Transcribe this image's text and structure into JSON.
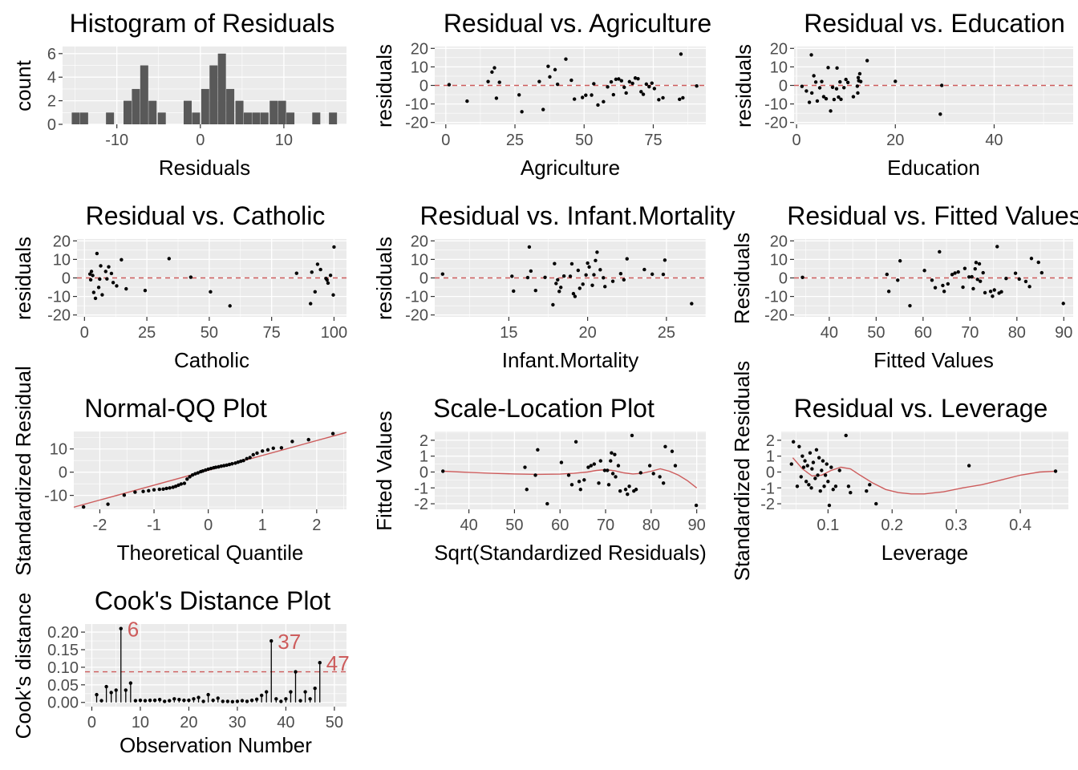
{
  "figure": {
    "background": "#ffffff",
    "panel_background": "#ebebeb",
    "grid_color": "#ffffff",
    "point_color": "#000000",
    "bar_color": "#595959",
    "reference_color": "#cd5c5c"
  },
  "chart_data": [
    {
      "id": "hist",
      "type": "bar",
      "title": "Histogram of Residuals",
      "xlabel": "Residuals",
      "ylabel": "count",
      "xlim": [
        -16.5,
        17.5
      ],
      "ylim": [
        0,
        6.6
      ],
      "xticks": [
        -10,
        0,
        10
      ],
      "xtick_labels": [
        "-10",
        "0",
        "10"
      ],
      "yticks": [
        0,
        2,
        4,
        6
      ],
      "ytick_labels": [
        "0",
        "2",
        "4",
        "6"
      ],
      "grid": true,
      "bin_width": 1,
      "x": [
        -14.9,
        -13.9,
        -10.8,
        -8.7,
        -7.7,
        -6.7,
        -5.7,
        -4.6,
        -1.5,
        -0.5,
        0.6,
        1.6,
        2.6,
        3.6,
        4.7,
        5.7,
        6.7,
        7.7,
        8.8,
        9.8,
        10.8,
        13.9,
        15.9
      ],
      "values": [
        1,
        1,
        1,
        2,
        3,
        5,
        2,
        1,
        2,
        1,
        3,
        5,
        6,
        3,
        2,
        1,
        1,
        1,
        2,
        2,
        1,
        1,
        1
      ]
    },
    {
      "id": "agri",
      "type": "scatter",
      "title": "Residual vs. Agriculture",
      "xlabel": "Agriculture",
      "ylabel": "residuals",
      "xlim": [
        -4,
        94
      ],
      "ylim": [
        -21,
        21
      ],
      "xticks": [
        0,
        25,
        50,
        75
      ],
      "xtick_labels": [
        "0",
        "25",
        "50",
        "75"
      ],
      "yticks": [
        -20,
        -10,
        0,
        10,
        20
      ],
      "ytick_labels": [
        "-20",
        "-10",
        "0",
        "10",
        "20"
      ],
      "reference_y": 0,
      "x": [
        1.2,
        7.7,
        15.3,
        16.7,
        17.6,
        18.3,
        19.4,
        26.5,
        27.5,
        33.8,
        35.2,
        37,
        37.6,
        39.5,
        40.4,
        43.4,
        45.4,
        46.5,
        49.4,
        50.6,
        52.7,
        53.5,
        55,
        57,
        58.5,
        59.8,
        60.6,
        61.5,
        62.5,
        63.5,
        64.5,
        65.2,
        66.4,
        67.5,
        68.5,
        69.5,
        70.6,
        71.4,
        72.5,
        73.5,
        74.5,
        75.4,
        77,
        78.5,
        84.5,
        85,
        85.7,
        90.7
      ],
      "y": [
        0.4,
        -8.5,
        2.1,
        7.2,
        9.5,
        -6.9,
        1.7,
        -5.1,
        -14.2,
        2.1,
        -13,
        10.3,
        4.6,
        8.5,
        0.6,
        14.2,
        2.8,
        -7.4,
        -6.5,
        -5.3,
        -5.2,
        0.9,
        -10.6,
        -8.8,
        -0.8,
        1.9,
        -5,
        3.3,
        3.5,
        2.5,
        -1,
        -4.1,
        2,
        1.1,
        4,
        3.6,
        -3.4,
        -4.8,
        0.7,
        -0.7,
        1.2,
        -1.7,
        -7.7,
        -6.7,
        -7.5,
        16.9,
        -6.7,
        -0.3
      ]
    },
    {
      "id": "edu",
      "type": "scatter",
      "title": "Residual vs. Education",
      "xlabel": "Education",
      "ylabel": "residuals",
      "xlim": [
        -0.5,
        56
      ],
      "ylim": [
        -21,
        21
      ],
      "xticks": [
        0,
        20,
        40
      ],
      "xtick_labels": [
        "0",
        "20",
        "40"
      ],
      "yticks": [
        -20,
        -10,
        0,
        10,
        20
      ],
      "ytick_labels": [
        "-20",
        "-10",
        "0",
        "10",
        "20"
      ],
      "reference_y": 0,
      "x": [
        1.1,
        2,
        2.6,
        3,
        3.1,
        3.5,
        3.9,
        4.2,
        4.7,
        5.1,
        5.5,
        6,
        6.4,
        6.9,
        7.3,
        7.6,
        8.1,
        8.2,
        8.5,
        8.8,
        9,
        9.6,
        10,
        10.4,
        11.5,
        12.3,
        12.4,
        12.5,
        12.6,
        12.8,
        13,
        14.3,
        20,
        29.1,
        29.4
      ],
      "y": [
        -0.5,
        -3,
        -9.1,
        16.5,
        -4.1,
        5.2,
        1.8,
        -8.4,
        -1.3,
        2.1,
        -6.1,
        -7.2,
        9.6,
        -13.8,
        -1,
        -7.6,
        -1.8,
        9.4,
        -6.3,
        1.9,
        -7.5,
        -1.2,
        3.2,
        1.6,
        -6.1,
        -0.4,
        -4.1,
        4.2,
        2.5,
        6.3,
        2.1,
        13.4,
        2.2,
        -15.5,
        0
      ]
    },
    {
      "id": "cath",
      "type": "scatter",
      "title": "Residual vs. Catholic",
      "xlabel": "Catholic",
      "ylabel": "residuals",
      "xlim": [
        -3,
        105
      ],
      "ylim": [
        -21,
        21
      ],
      "xticks": [
        0,
        25,
        50,
        75,
        100
      ],
      "xtick_labels": [
        "0",
        "25",
        "50",
        "75",
        "100"
      ],
      "yticks": [
        -20,
        -10,
        0,
        10,
        20
      ],
      "ytick_labels": [
        "-20",
        "-10",
        "0",
        "10",
        "20"
      ],
      "reference_y": 0,
      "x": [
        2.2,
        2.5,
        2.8,
        3.3,
        3.7,
        4.4,
        5,
        5.7,
        6.1,
        6.5,
        7.1,
        8.5,
        9,
        9.7,
        10.8,
        11.5,
        12.9,
        14.8,
        16.7,
        24.3,
        33.9,
        42.6,
        50.5,
        58.3,
        85,
        90.6,
        91.1,
        92.4,
        93.4,
        94.6,
        96.8,
        97.2,
        97.6,
        98.6,
        99.7,
        100
      ],
      "y": [
        2.1,
        -1,
        3.5,
        1.3,
        -7.8,
        -11,
        13.2,
        -5.1,
        -0.6,
        6.5,
        -9.1,
        3.5,
        -0.5,
        6,
        2.4,
        -2.5,
        -4.3,
        9.8,
        -5.9,
        -6.8,
        10.4,
        0.4,
        -7.5,
        -15.1,
        2.5,
        -13.9,
        3.1,
        -7.5,
        7.4,
        4.5,
        -0.3,
        -1.1,
        -2.8,
        1.4,
        -9.2,
        16.7
      ]
    },
    {
      "id": "infant",
      "type": "scatter",
      "title": "Residual vs. Infant.Mortality",
      "xlabel": "Infant.Mortality",
      "ylabel": "residuals",
      "xlim": [
        10.3,
        27.5
      ],
      "ylim": [
        -21,
        21
      ],
      "xticks": [
        15,
        20,
        25
      ],
      "xtick_labels": [
        "15",
        "20",
        "25"
      ],
      "yticks": [
        -20,
        -10,
        0,
        10,
        20
      ],
      "ytick_labels": [
        "-20",
        "-10",
        "0",
        "10",
        "20"
      ],
      "reference_y": 0,
      "x": [
        10.8,
        15.2,
        15.3,
        16.2,
        16.3,
        16.4,
        16.7,
        17.3,
        17.8,
        17.9,
        18,
        18.1,
        18.2,
        18.3,
        18.5,
        18.9,
        19,
        19.1,
        19.2,
        19.4,
        19.5,
        19.7,
        19.9,
        20,
        20.1,
        20.3,
        20.4,
        20.5,
        20.6,
        20.8,
        21,
        21.1,
        21.6,
        22.1,
        22.3,
        22.5,
        23.6,
        24.1,
        24.8,
        24.9,
        26.6
      ],
      "y": [
        2.1,
        0.9,
        -7.1,
        0.2,
        16.7,
        3.7,
        -6.8,
        0.3,
        -14.5,
        7.7,
        -3,
        -1,
        -7.3,
        -5.1,
        1,
        0.9,
        7.6,
        -8.5,
        -10,
        4.1,
        -5.6,
        -3.4,
        1.6,
        8,
        5.9,
        -4,
        1.7,
        9.4,
        13.9,
        4.4,
        0.1,
        -4.7,
        -1.8,
        2.3,
        -1,
        10.3,
        4.5,
        2,
        1.9,
        9.6,
        -13.9
      ]
    },
    {
      "id": "fitted",
      "type": "scatter",
      "title": "Residual vs. Fitted Values",
      "xlabel": "Fitted Values",
      "ylabel": "Residuals",
      "xlim": [
        32.5,
        92
      ],
      "ylim": [
        -21,
        21
      ],
      "xticks": [
        40,
        50,
        60,
        70,
        80,
        90
      ],
      "xtick_labels": [
        "40",
        "50",
        "60",
        "70",
        "80",
        "90"
      ],
      "yticks": [
        -20,
        -10,
        0,
        10,
        20
      ],
      "ytick_labels": [
        "-20",
        "-10",
        "0",
        "10",
        "20"
      ],
      "reference_y": 0,
      "x": [
        34.3,
        52.3,
        52.7,
        54.6,
        55.1,
        57.2,
        60.3,
        61.9,
        62.6,
        63.5,
        64.2,
        64.5,
        65.3,
        66.2,
        66.8,
        67.5,
        68.5,
        68.9,
        69.8,
        70.4,
        70.7,
        71.1,
        71.3,
        71.6,
        72,
        72.2,
        72.8,
        73.2,
        74.4,
        74.8,
        75.2,
        75.8,
        76.2,
        76.7,
        77.7,
        79.7,
        80.5,
        81.9,
        82.7,
        83.1,
        84.6,
        85.3,
        89.9
      ],
      "y": [
        0.3,
        1.9,
        -7.3,
        -1.2,
        9.2,
        -15,
        4,
        -1.2,
        -5.3,
        14.1,
        -4.1,
        -7.3,
        -3.2,
        1.8,
        2.6,
        3.2,
        -5,
        5.1,
        0.5,
        0.6,
        -5.8,
        4.9,
        8.3,
        -0.8,
        7.6,
        -1.8,
        2.8,
        -8,
        -7.3,
        -9.9,
        -6.5,
        16.9,
        -8.2,
        -7.5,
        -0.3,
        2.5,
        -0.6,
        -1.9,
        -4.7,
        10.5,
        8.4,
        2.8,
        -13.8
      ]
    },
    {
      "id": "qq",
      "type": "scatter",
      "title": "Normal-QQ Plot",
      "xlabel": "Theoretical Quantile",
      "ylabel": "Standardized Residual",
      "xlim": [
        -2.48,
        2.55
      ],
      "ylim": [
        -16,
        17.5
      ],
      "xticks": [
        -2,
        -1,
        0,
        1,
        2
      ],
      "xtick_labels": [
        "-2",
        "-1",
        "0",
        "1",
        "2"
      ],
      "yticks": [
        -10,
        0,
        10
      ],
      "ytick_labels": [
        "-10",
        "0",
        "10"
      ],
      "reference_line": {
        "intercept": 0.8,
        "slope": 6.4
      },
      "x": [
        -2.3,
        -1.85,
        -1.55,
        -1.35,
        -1.2,
        -1.1,
        -1,
        -0.9,
        -0.83,
        -0.77,
        -0.71,
        -0.65,
        -0.6,
        -0.55,
        -0.5,
        -0.44,
        -0.39,
        -0.34,
        -0.29,
        -0.24,
        -0.19,
        -0.14,
        -0.1,
        -0.05,
        0,
        0.05,
        0.1,
        0.14,
        0.19,
        0.24,
        0.29,
        0.34,
        0.39,
        0.44,
        0.5,
        0.55,
        0.6,
        0.65,
        0.71,
        0.77,
        0.83,
        0.9,
        1,
        1.1,
        1.2,
        1.35,
        1.55,
        1.85,
        2.3
      ],
      "y": [
        -15,
        -13.8,
        -9.9,
        -8.6,
        -8.3,
        -8,
        -7.6,
        -7.4,
        -7.3,
        -7,
        -6.8,
        -6.5,
        -6.1,
        -5.6,
        -5.1,
        -4.8,
        -3,
        -2,
        -1.2,
        -0.7,
        -0.3,
        0.2,
        0.5,
        0.9,
        1.3,
        1.6,
        1.9,
        2.1,
        2.3,
        2.6,
        2.8,
        3,
        3.3,
        3.6,
        3.9,
        4.3,
        4.7,
        5,
        5.8,
        6.3,
        7.5,
        8.2,
        9.1,
        9.6,
        10.3,
        10.5,
        13.2,
        14,
        16.6
      ]
    },
    {
      "id": "scaleloc",
      "type": "scatter",
      "title": "Scale-Location Plot",
      "xlabel": "Sqrt(Standardized Residuals)",
      "ylabel": "Fitted Values",
      "xlim": [
        32.5,
        92
      ],
      "ylim": [
        -2.35,
        2.55
      ],
      "xticks": [
        40,
        50,
        60,
        70,
        80,
        90
      ],
      "xtick_labels": [
        "40",
        "50",
        "60",
        "70",
        "80",
        "90"
      ],
      "yticks": [
        -2,
        -1,
        0,
        1,
        2
      ],
      "ytick_labels": [
        "-2",
        "-1",
        "0",
        "1",
        "2"
      ],
      "smooth_x": [
        34.3,
        40,
        45,
        50,
        55,
        60,
        63,
        66,
        68,
        70,
        72,
        74,
        76,
        78,
        80,
        82,
        84,
        86,
        88,
        90
      ],
      "smooth_y": [
        0.05,
        -0.02,
        -0.08,
        -0.12,
        -0.15,
        -0.13,
        -0.08,
        0,
        0.1,
        0.15,
        0.08,
        -0.05,
        -0.12,
        -0.08,
        0.05,
        0.2,
        0.05,
        -0.2,
        -0.55,
        -1.0
      ],
      "x": [
        34.3,
        52.3,
        52.7,
        54.6,
        55.1,
        57.2,
        60.3,
        61.9,
        62.6,
        63.5,
        64.2,
        64.5,
        65.3,
        66.2,
        66.8,
        67.5,
        68.5,
        68.9,
        69.8,
        70.4,
        70.7,
        71.1,
        71.3,
        71.6,
        72,
        72.2,
        72.8,
        73.2,
        74.4,
        74.8,
        75.2,
        75.8,
        76.2,
        76.7,
        77.7,
        79.7,
        80.5,
        81.9,
        82.7,
        83.1,
        84.6,
        85.3,
        89.9
      ],
      "y": [
        0.05,
        0.3,
        -1.1,
        -0.2,
        1.4,
        -2,
        0.6,
        -0.2,
        -0.8,
        1.9,
        -0.6,
        -1.1,
        -0.5,
        0.3,
        0.4,
        0.5,
        -0.7,
        0.7,
        0.1,
        0.1,
        -0.8,
        0.7,
        1.2,
        -0.1,
        1.1,
        -0.3,
        0.4,
        -1.2,
        -1.1,
        -1.4,
        -0.9,
        2.3,
        -1.2,
        -1.1,
        -0.05,
        0.4,
        -0.1,
        -0.3,
        -0.7,
        1.6,
        1.3,
        0.4,
        -2.1
      ]
    },
    {
      "id": "leverage",
      "type": "scatter",
      "title": "Residual vs. Leverage",
      "xlabel": "Leverage",
      "ylabel": "Standardized Residuals",
      "xlim": [
        0.027,
        0.475
      ],
      "ylim": [
        -2.35,
        2.55
      ],
      "xticks": [
        0.1,
        0.2,
        0.3,
        0.4
      ],
      "xtick_labels": [
        "0.1",
        "0.2",
        "0.3",
        "0.4"
      ],
      "yticks": [
        -2,
        -1,
        0,
        1,
        2
      ],
      "ytick_labels": [
        "-2",
        "-1",
        "0",
        "1",
        "2"
      ],
      "smooth_x": [
        0.045,
        0.06,
        0.075,
        0.09,
        0.105,
        0.12,
        0.135,
        0.15,
        0.17,
        0.19,
        0.21,
        0.23,
        0.25,
        0.28,
        0.31,
        0.34,
        0.37,
        0.4,
        0.43,
        0.455
      ],
      "smooth_y": [
        0.9,
        0.2,
        -0.25,
        -0.2,
        0.1,
        0.3,
        0.2,
        -0.2,
        -0.7,
        -1.1,
        -1.3,
        -1.38,
        -1.38,
        -1.25,
        -1.0,
        -0.8,
        -0.5,
        -0.2,
        0.0,
        0.05
      ],
      "x": [
        0.043,
        0.046,
        0.052,
        0.055,
        0.058,
        0.06,
        0.062,
        0.064,
        0.066,
        0.068,
        0.07,
        0.072,
        0.074,
        0.075,
        0.077,
        0.08,
        0.082,
        0.084,
        0.086,
        0.088,
        0.09,
        0.092,
        0.094,
        0.096,
        0.098,
        0.1,
        0.102,
        0.105,
        0.108,
        0.112,
        0.118,
        0.128,
        0.132,
        0.135,
        0.16,
        0.165,
        0.175,
        0.32,
        0.455
      ],
      "y": [
        0.5,
        1.9,
        -0.9,
        1.6,
        -0.3,
        1,
        0.3,
        0.7,
        -0.6,
        0.4,
        -0.8,
        1.2,
        -1,
        0.2,
        0.6,
        -0.4,
        1.4,
        -0.2,
        0.9,
        -1.2,
        0.1,
        0.7,
        -0.9,
        -0.2,
        0.5,
        -0.6,
        -2.1,
        0.3,
        -1.1,
        -0.9,
        0.1,
        2.3,
        -0.9,
        -1.3,
        -1.2,
        -0.8,
        -2,
        0.4,
        0.05
      ]
    },
    {
      "id": "cooks",
      "type": "scatter",
      "title": "Cook's Distance Plot",
      "xlabel": "Observation Number",
      "ylabel": "Cook's distance",
      "xlim": [
        -1.4,
        52.5
      ],
      "ylim": [
        -0.012,
        0.223
      ],
      "xticks": [
        0,
        10,
        20,
        30,
        40,
        50
      ],
      "xtick_labels": [
        "0",
        "10",
        "20",
        "30",
        "40",
        "50"
      ],
      "yticks": [
        0,
        0.05,
        0.1,
        0.15,
        0.2
      ],
      "ytick_labels": [
        "0.00",
        "0.05",
        "0.10",
        "0.15",
        "0.20"
      ],
      "reference_y": 0.087,
      "labels": [
        {
          "x": 6,
          "y": 0.21,
          "text": "6"
        },
        {
          "x": 37,
          "y": 0.175,
          "text": "37"
        },
        {
          "x": 47,
          "y": 0.113,
          "text": "47"
        }
      ],
      "x": [
        1,
        2,
        3,
        4,
        5,
        6,
        7,
        8,
        9,
        10,
        11,
        12,
        13,
        14,
        15,
        16,
        17,
        18,
        19,
        20,
        21,
        22,
        23,
        24,
        25,
        26,
        27,
        28,
        29,
        30,
        31,
        32,
        33,
        34,
        35,
        36,
        37,
        38,
        39,
        40,
        41,
        42,
        43,
        44,
        45,
        46,
        47
      ],
      "y": [
        0.022,
        0.005,
        0.045,
        0.028,
        0.035,
        0.21,
        0.035,
        0.055,
        0.005,
        0.006,
        0.005,
        0.006,
        0.006,
        0.008,
        0.003,
        0.005,
        0.01,
        0.008,
        0.006,
        0.006,
        0.01,
        0.014,
        0.003,
        0.022,
        0.006,
        0.012,
        0.003,
        0.003,
        0.002,
        0.003,
        0.005,
        0.003,
        0.006,
        0.009,
        0.02,
        0.03,
        0.175,
        0.01,
        0.003,
        0.01,
        0.03,
        0.087,
        0.005,
        0.03,
        0.01,
        0.04,
        0.113
      ]
    }
  ]
}
